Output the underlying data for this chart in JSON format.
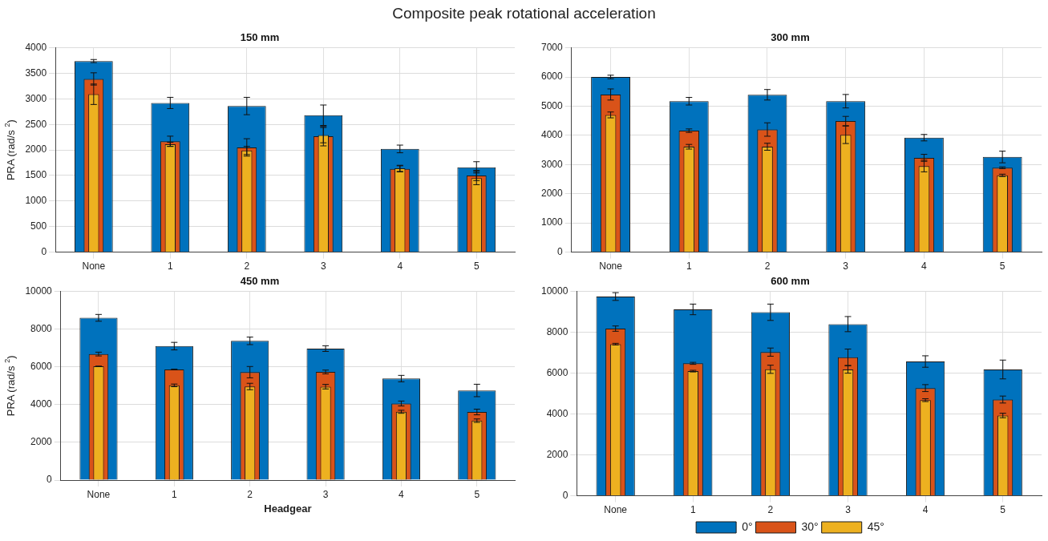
{
  "chart_data": [
    {
      "type": "bar",
      "title": "150 mm",
      "annotations": [
        "Composite peak rotational acceleration"
      ],
      "ylabel": "PRA (rad/s$^{2}$)",
      "categories": [
        "None",
        "1",
        "2",
        "3",
        "4",
        "5"
      ],
      "ylim": [
        0,
        4000
      ],
      "yticks": [
        0,
        500,
        1000,
        1500,
        2000,
        2500,
        3000,
        3500,
        4000
      ],
      "grid": true,
      "series": [
        {
          "color": "#0072bd",
          "values": [
            3740,
            2920,
            2860,
            2680,
            2020,
            1660
          ],
          "errors": [
            30,
            110,
            170,
            200,
            75,
            110
          ]
        },
        {
          "color": "#d95319",
          "values": [
            3390,
            2170,
            2050,
            2270,
            1630,
            1500
          ],
          "errors": [
            120,
            100,
            170,
            190,
            60,
            100
          ]
        },
        {
          "color": "#edb120",
          "values": [
            3090,
            2110,
            1990,
            2290,
            1640,
            1450
          ],
          "errors": [
            200,
            40,
            80,
            150,
            60,
            130
          ]
        }
      ]
    },
    {
      "type": "bar",
      "title": "300 mm",
      "categories": [
        "None",
        "1",
        "2",
        "3",
        "4",
        "5"
      ],
      "ylim": [
        0,
        7000
      ],
      "yticks": [
        0,
        1000,
        2000,
        3000,
        4000,
        5000,
        6000,
        7000
      ],
      "grid": true,
      "series": [
        {
          "color": "#0072bd",
          "values": [
            6000,
            5170,
            5390,
            5170,
            3920,
            3260
          ],
          "errors": [
            60,
            130,
            180,
            230,
            110,
            200
          ]
        },
        {
          "color": "#d95319",
          "values": [
            5400,
            4160,
            4200,
            4490,
            3230,
            2890
          ],
          "errors": [
            190,
            60,
            230,
            160,
            120,
            30
          ]
        },
        {
          "color": "#edb120",
          "values": [
            4700,
            3610,
            3610,
            4020,
            2950,
            2630
          ],
          "errors": [
            100,
            80,
            120,
            300,
            200,
            40
          ]
        }
      ]
    },
    {
      "type": "bar",
      "title": "450 mm",
      "ylabel": "PRA (rad/s$^{2}$)",
      "xlabel": "Headgear",
      "categories": [
        "None",
        "1",
        "2",
        "3",
        "4",
        "5"
      ],
      "ylim": [
        0,
        10000
      ],
      "yticks": [
        0,
        2000,
        4000,
        6000,
        8000,
        10000
      ],
      "grid": true,
      "series": [
        {
          "color": "#0072bd",
          "values": [
            8600,
            7100,
            7380,
            6970,
            5380,
            4750
          ],
          "errors": [
            180,
            200,
            200,
            150,
            170,
            330
          ]
        },
        {
          "color": "#d95319",
          "values": [
            6680,
            5860,
            5720,
            5730,
            4060,
            3610
          ],
          "errors": [
            100,
            20,
            300,
            100,
            130,
            150
          ]
        },
        {
          "color": "#edb120",
          "values": [
            6030,
            5020,
            4960,
            4950,
            3620,
            3150
          ],
          "errors": [
            10,
            70,
            170,
            120,
            80,
            90
          ]
        }
      ]
    },
    {
      "type": "bar",
      "title": "600 mm",
      "legend": "bottom",
      "categories": [
        "None",
        "1",
        "2",
        "3",
        "4",
        "5"
      ],
      "ylim": [
        0,
        10000
      ],
      "yticks": [
        0,
        2000,
        4000,
        6000,
        8000,
        10000
      ],
      "grid": true,
      "series": [
        {
          "name": "0°",
          "color": "#0072bd",
          "values": [
            9750,
            9120,
            8980,
            8400,
            6570,
            6180
          ],
          "errors": [
            190,
            260,
            400,
            370,
            280,
            460
          ]
        },
        {
          "name": "30°",
          "color": "#d95319",
          "values": [
            8180,
            6480,
            7030,
            6780,
            5270,
            4710
          ],
          "errors": [
            130,
            50,
            200,
            400,
            170,
            170
          ]
        },
        {
          "name": "45°",
          "color": "#edb120",
          "values": [
            7420,
            6100,
            6190,
            6180,
            4680,
            3930
          ],
          "errors": [
            40,
            40,
            200,
            180,
            70,
            110
          ]
        }
      ]
    }
  ]
}
